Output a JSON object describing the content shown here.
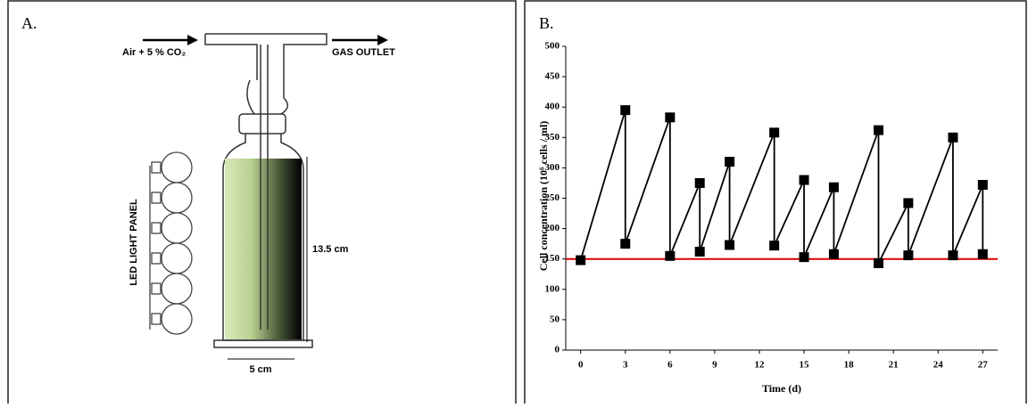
{
  "diagram": {
    "panel_label": "A.",
    "inlet_label": "Air + 5 % CO₂",
    "outlet_label": "GAS OUTLET",
    "panel_name": "LED LIGHT PANEL",
    "height_label": "13.5 cm",
    "width_label": "5 cm"
  },
  "chart_data": {
    "type": "line",
    "panel_label": "B.",
    "x_label": "Time (d)",
    "y_label": "Cell concentration (10⁶ cells / ml)",
    "series": [
      {
        "color": "#000000",
        "x": [
          0,
          3,
          3,
          6,
          6,
          8,
          8,
          10,
          10,
          13,
          13,
          15,
          15,
          17,
          17,
          20,
          20,
          22,
          22,
          25,
          25,
          27,
          27
        ],
        "values": [
          148,
          395,
          175,
          383,
          155,
          275,
          162,
          310,
          173,
          358,
          172,
          280,
          153,
          268,
          158,
          362,
          143,
          242,
          156,
          350,
          156,
          272,
          158
        ]
      }
    ],
    "reference_line": {
      "value": 150,
      "color": "#e00000"
    },
    "xlim": [
      -1,
      28
    ],
    "ylim": [
      0,
      500
    ],
    "xticks": [
      0,
      3,
      6,
      9,
      12,
      15,
      18,
      21,
      24,
      27
    ],
    "yticks": [
      0,
      50,
      100,
      150,
      200,
      250,
      300,
      350,
      400,
      450,
      500
    ]
  }
}
